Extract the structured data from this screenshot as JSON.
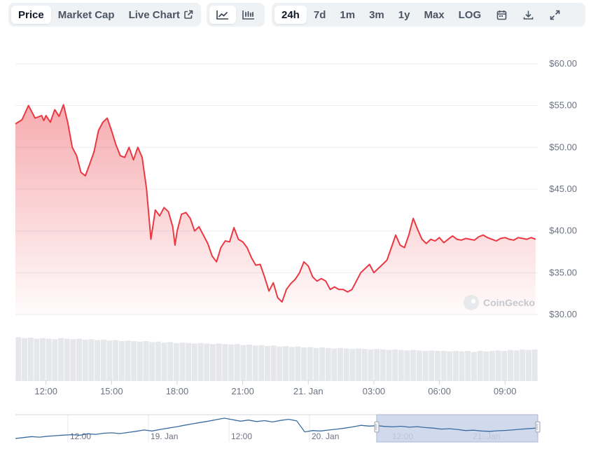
{
  "toolbar": {
    "metric_tabs": [
      {
        "label": "Price",
        "active": true
      },
      {
        "label": "Market Cap",
        "active": false
      },
      {
        "label": "Live Chart",
        "active": false
      }
    ],
    "chart_style_icons": [
      "line-chart-icon",
      "candlestick-chart-icon"
    ],
    "ranges": [
      {
        "label": "24h",
        "active": true
      },
      {
        "label": "7d",
        "active": false
      },
      {
        "label": "1m",
        "active": false
      },
      {
        "label": "3m",
        "active": false
      },
      {
        "label": "1y",
        "active": false
      },
      {
        "label": "Max",
        "active": false
      },
      {
        "label": "LOG",
        "active": false
      }
    ],
    "action_icons": [
      "calendar-icon",
      "download-icon",
      "expand-icon"
    ]
  },
  "watermark": "CoinGecko",
  "colors": {
    "line": "#ea3943",
    "volume": "#e5e7eb",
    "navigator_line": "#3b6aa0",
    "navigator_selection": "#c9d3ea"
  },
  "chart_data": {
    "type": "area",
    "title": "",
    "xlabel": "",
    "ylabel": "",
    "y_tick_labels": [
      "$30.00",
      "$35.00",
      "$40.00",
      "$45.00",
      "$50.00",
      "$55.00",
      "$60.00"
    ],
    "ylim": [
      30,
      60
    ],
    "x_tick_labels": [
      "12:00",
      "15:00",
      "18:00",
      "21:00",
      "21. Jan",
      "03:00",
      "06:00",
      "09:00"
    ],
    "x_tick_hours": [
      2,
      5,
      8,
      11,
      14,
      17,
      20,
      23
    ],
    "x_range_hours": [
      0.6,
      24.5
    ],
    "x_unit": "hours since 20 Jan 10:00",
    "grid": true,
    "series": [
      {
        "type": "area",
        "x": [
          0.6,
          0.9,
          1.2,
          1.5,
          1.8,
          1.9,
          2.0,
          2.2,
          2.4,
          2.6,
          2.8,
          3.0,
          3.2,
          3.4,
          3.6,
          3.8,
          4.0,
          4.2,
          4.4,
          4.6,
          4.8,
          5.0,
          5.2,
          5.4,
          5.6,
          5.8,
          6.0,
          6.2,
          6.4,
          6.6,
          6.8,
          7.0,
          7.2,
          7.4,
          7.6,
          7.8,
          7.9,
          8.0,
          8.2,
          8.4,
          8.6,
          8.8,
          9.0,
          9.2,
          9.4,
          9.6,
          9.8,
          10.0,
          10.2,
          10.4,
          10.6,
          10.8,
          11.0,
          11.2,
          11.4,
          11.6,
          11.8,
          12.0,
          12.2,
          12.4,
          12.6,
          12.8,
          13.0,
          13.2,
          13.4,
          13.6,
          13.8,
          14.0,
          14.2,
          14.4,
          14.6,
          14.8,
          15.0,
          15.2,
          15.4,
          15.6,
          15.8,
          16.0,
          16.2,
          16.4,
          16.6,
          16.8,
          17.0,
          17.2,
          17.4,
          17.6,
          17.8,
          18.0,
          18.2,
          18.4,
          18.6,
          18.8,
          19.0,
          19.2,
          19.4,
          19.6,
          19.8,
          20.0,
          20.2,
          20.4,
          20.6,
          20.8,
          21.0,
          21.2,
          21.4,
          21.6,
          21.8,
          22.0,
          22.2,
          22.4,
          22.6,
          22.8,
          23.0,
          23.2,
          23.4,
          23.6,
          23.8,
          24.0,
          24.2,
          24.4
        ],
        "values": [
          52.8,
          53.3,
          55.0,
          53.5,
          53.8,
          53.2,
          53.8,
          53.0,
          54.5,
          53.7,
          55.1,
          52.9,
          50.0,
          49.0,
          47.0,
          46.6,
          48.0,
          49.5,
          52.0,
          53.0,
          53.5,
          52.0,
          50.3,
          49.0,
          48.8,
          50.0,
          48.5,
          50.0,
          48.8,
          45.0,
          39.0,
          42.5,
          41.8,
          42.8,
          42.3,
          40.5,
          38.3,
          40.0,
          42.0,
          42.2,
          41.5,
          40.0,
          40.5,
          39.5,
          38.5,
          37.0,
          36.3,
          38.0,
          38.8,
          38.7,
          40.4,
          39.0,
          38.7,
          38.0,
          36.8,
          35.9,
          36.0,
          34.5,
          32.8,
          33.8,
          32.0,
          31.5,
          33.0,
          33.7,
          34.2,
          35.0,
          36.3,
          35.8,
          34.5,
          34.0,
          34.3,
          34.0,
          33.0,
          33.3,
          33.0,
          33.0,
          32.7,
          33.0,
          34.0,
          35.0,
          35.5,
          36.0,
          35.0,
          35.5,
          36.0,
          36.5,
          38.0,
          39.5,
          38.3,
          38.0,
          39.5,
          41.5,
          40.2,
          39.0,
          38.5,
          39.0,
          38.8,
          39.2,
          38.6,
          39.0,
          39.4,
          39.0,
          38.9,
          39.1,
          39.0,
          38.9,
          39.3,
          39.5,
          39.2,
          39.0,
          38.8,
          39.1,
          39.2,
          39.0,
          38.9,
          39.2,
          39.1,
          39.0,
          39.2,
          39.0
        ]
      },
      {
        "type": "bar",
        "name": "",
        "values_relative": [
          0.88,
          0.86,
          0.87,
          0.85,
          0.86,
          0.85,
          0.84,
          0.86,
          0.85,
          0.84,
          0.85,
          0.83,
          0.84,
          0.82,
          0.83,
          0.81,
          0.82,
          0.8,
          0.81,
          0.8,
          0.79,
          0.8,
          0.78,
          0.79,
          0.77,
          0.78,
          0.76,
          0.77,
          0.76,
          0.75,
          0.76,
          0.75,
          0.74,
          0.75,
          0.74,
          0.73,
          0.74,
          0.72,
          0.73,
          0.71,
          0.72,
          0.7,
          0.71,
          0.69,
          0.7,
          0.68,
          0.69,
          0.67,
          0.68,
          0.66,
          0.67,
          0.66,
          0.65,
          0.66,
          0.65,
          0.64,
          0.65,
          0.64,
          0.63,
          0.64,
          0.63,
          0.62,
          0.63,
          0.62,
          0.61,
          0.62,
          0.61,
          0.6,
          0.61,
          0.6,
          0.6,
          0.59,
          0.6,
          0.59,
          0.6,
          0.58,
          0.6,
          0.59,
          0.6,
          0.61,
          0.6,
          0.62,
          0.61,
          0.63,
          0.62,
          0.63
        ]
      }
    ],
    "navigator": {
      "x_tick_labels": [
        "12:00",
        "19. Jan",
        "12:00",
        "20. Jan",
        "12:00",
        "21. Jan"
      ],
      "values": [
        30,
        30.5,
        31,
        30.7,
        31.2,
        31.5,
        31.8,
        32.0,
        31.7,
        32.5,
        32.2,
        32.8,
        33.0,
        32.6,
        33.2,
        33.8,
        34.5,
        34.0,
        34.8,
        35.5,
        36.2,
        37.0,
        37.8,
        38.5,
        39.2,
        40.0,
        40.8,
        40.0,
        39.2,
        39.8,
        39.0,
        39.5,
        38.8,
        39.6,
        40.2,
        39.4,
        33.5,
        34.2,
        34.0,
        34.5,
        35.0,
        35.5,
        36.2,
        37.0,
        36.6,
        36.8,
        36.4,
        36.2,
        36.5,
        36.0,
        36.3,
        35.8,
        35.5,
        35.0,
        35.2,
        34.8,
        34.2,
        34.4,
        34.0,
        33.8,
        34.1,
        34.3,
        34.6,
        35.0,
        35.3,
        35.6
      ]
    }
  }
}
